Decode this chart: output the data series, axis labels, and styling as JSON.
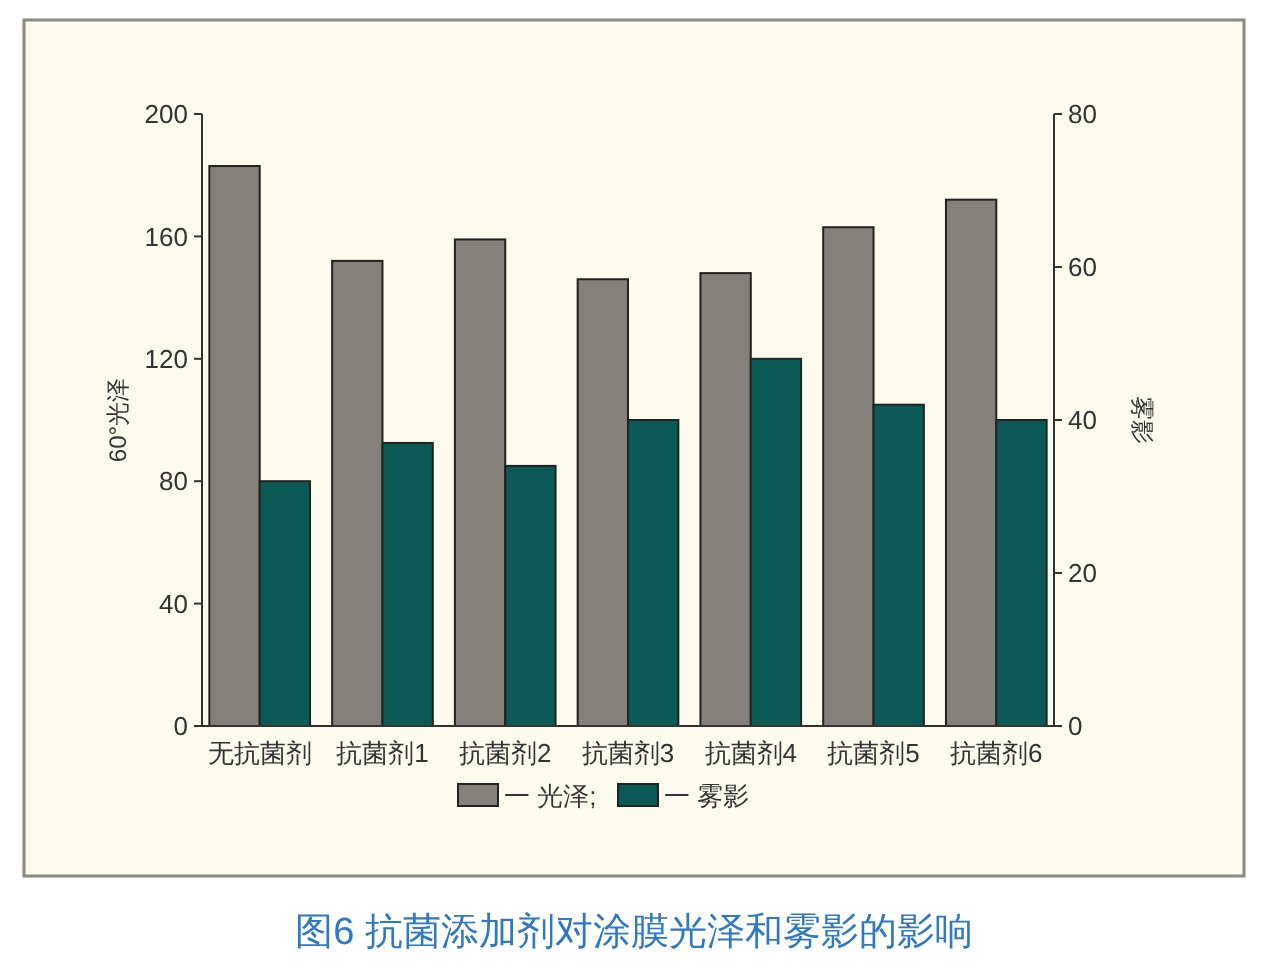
{
  "chart_data": {
    "type": "bar",
    "title": "图6 抗菌添加剂对涂膜光泽和雾影的影响",
    "ylabel": "60°光泽",
    "y2label": "雾影",
    "categories": [
      "无抗菌剂",
      "抗菌剂1",
      "抗菌剂2",
      "抗菌剂3",
      "抗菌剂4",
      "抗菌剂5",
      "抗菌剂6"
    ],
    "series": [
      {
        "name": "一 光泽;",
        "color": "#85817a",
        "values": [
          183,
          152,
          159,
          146,
          148,
          163,
          172
        ]
      },
      {
        "name": "一 雾影",
        "color": "#0c5a55",
        "values": [
          32,
          37,
          34,
          40,
          48,
          42,
          40
        ],
        "axis": "y2"
      }
    ],
    "ylim": [
      0,
      200
    ],
    "yticks": [
      0,
      40,
      80,
      120,
      160,
      200
    ],
    "y2lim": [
      0,
      80
    ],
    "y2ticks": [
      0,
      20,
      40,
      60,
      80
    ],
    "grid": false,
    "legend": "bottom"
  }
}
